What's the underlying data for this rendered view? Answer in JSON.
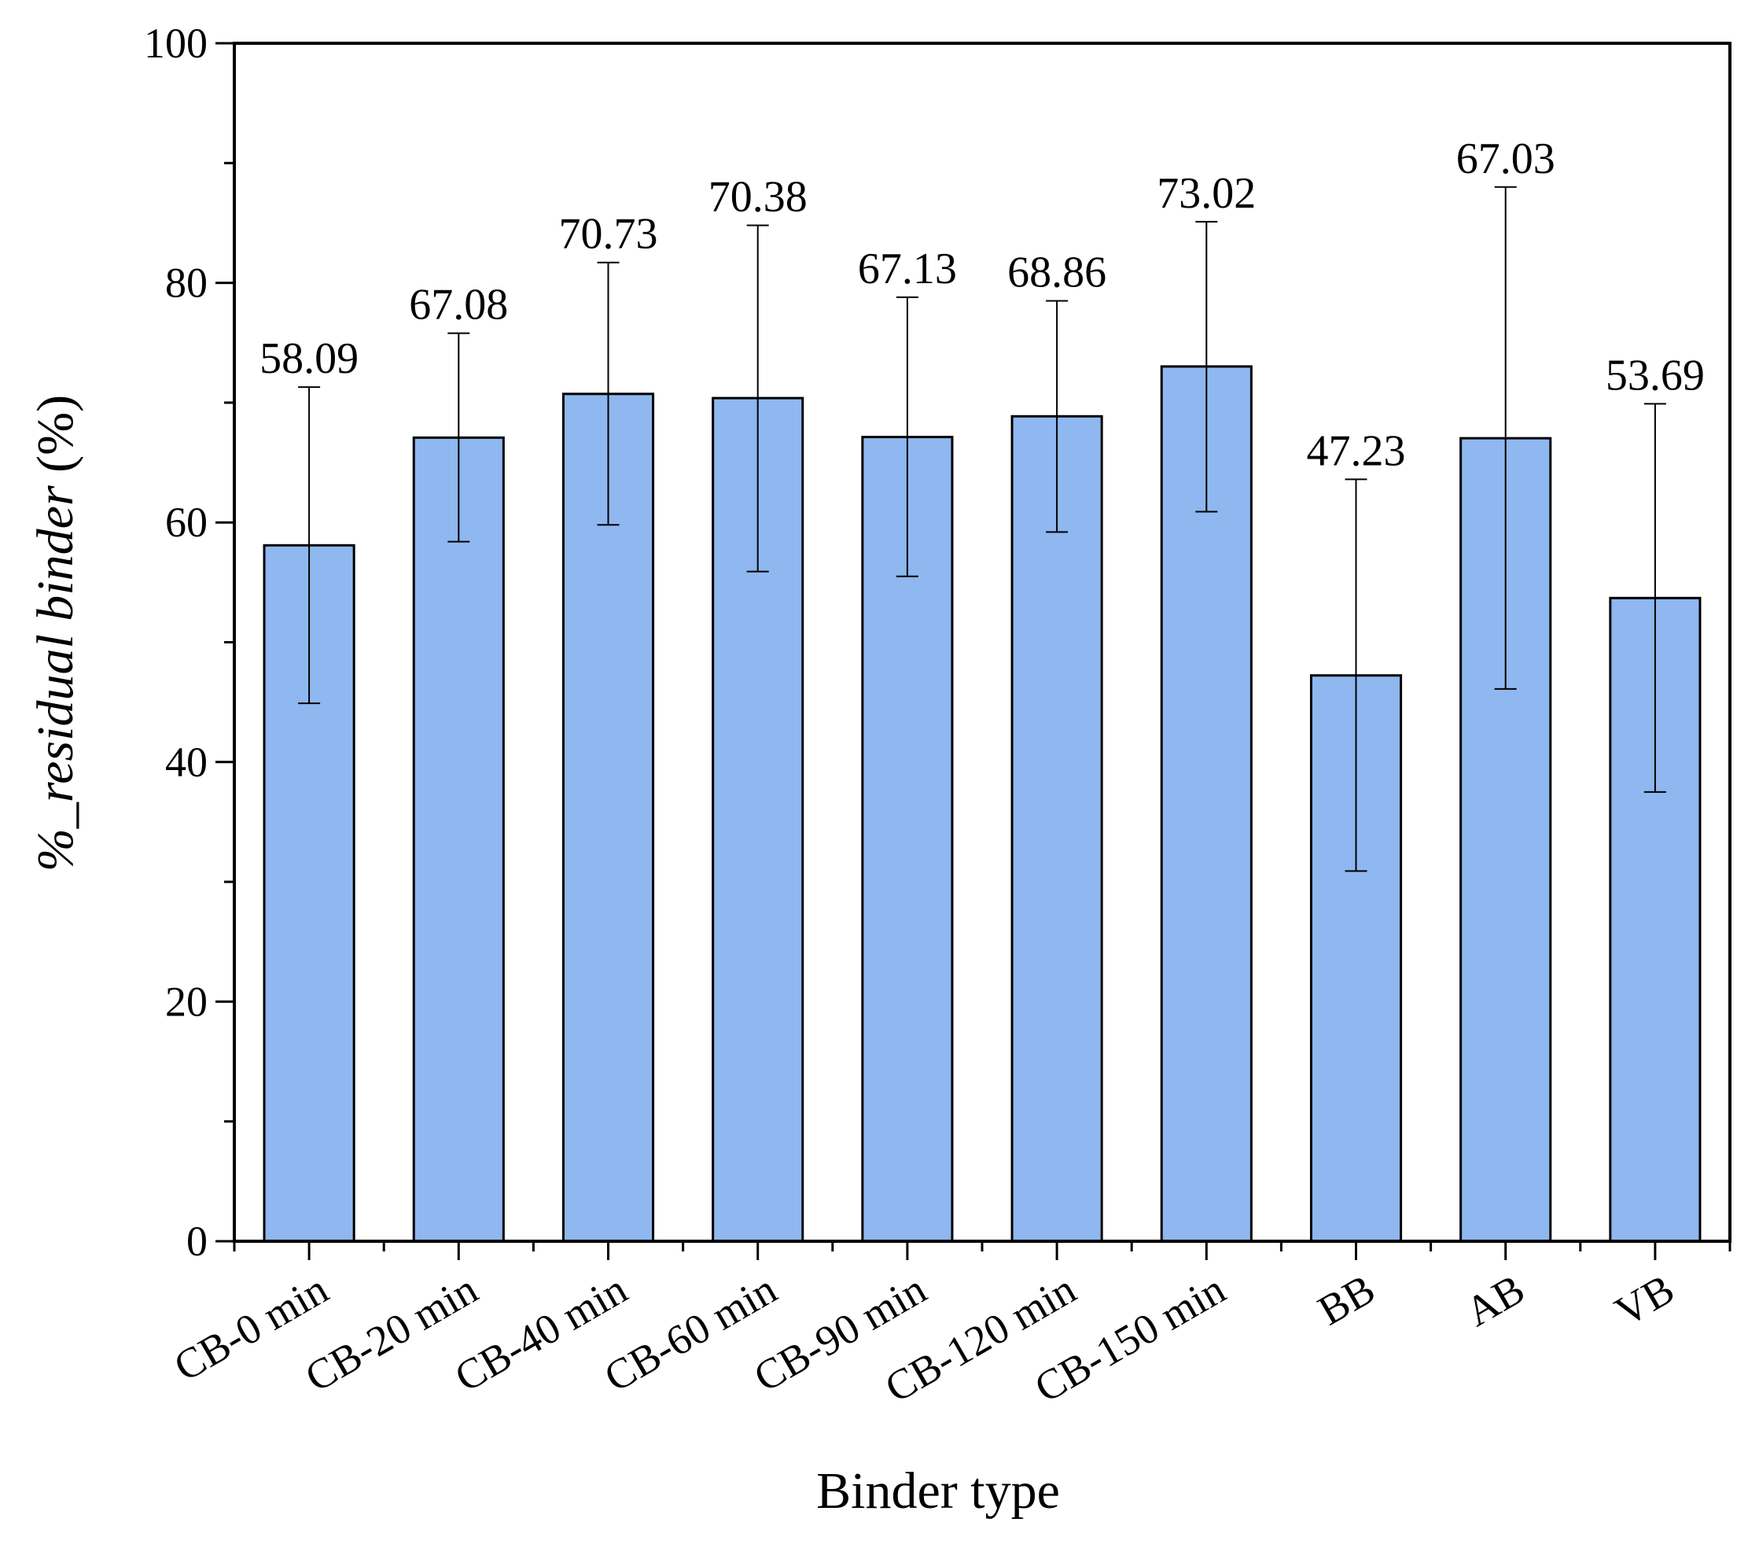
{
  "chart_data": {
    "type": "bar",
    "categories": [
      "CB-0 min",
      "CB-20 min",
      "CB-40 min",
      "CB-60 min",
      "CB-90 min",
      "CB-120 min",
      "CB-150 min",
      "BB",
      "AB",
      "VB"
    ],
    "values": [
      58.09,
      67.08,
      70.73,
      70.38,
      67.13,
      68.86,
      73.02,
      47.23,
      67.03,
      53.69
    ],
    "value_labels": [
      "58.09",
      "67.08",
      "70.73",
      "70.38",
      "67.13",
      "68.86",
      "73.02",
      "47.23",
      "67.03",
      "53.69"
    ],
    "error_bars": {
      "upper": [
        71.3,
        75.8,
        81.7,
        84.8,
        78.8,
        78.5,
        85.1,
        63.6,
        88.0,
        69.9
      ],
      "lower": [
        44.9,
        58.4,
        59.8,
        55.9,
        55.5,
        59.2,
        60.9,
        30.9,
        46.1,
        37.5
      ]
    },
    "xlabel": "Binder type",
    "ylabel_prefix": "%_",
    "ylabel_italic": "residual binder",
    "ylabel_suffix": " (%)",
    "ylim": [
      0,
      100
    ],
    "yticks": [
      0,
      20,
      40,
      60,
      80,
      100
    ],
    "ytick_labels": [
      "0",
      "20",
      "40",
      "60",
      "80",
      "100"
    ],
    "grid": false,
    "bar_color": "#8fb7f0",
    "bar_edge_color": "#000000"
  }
}
